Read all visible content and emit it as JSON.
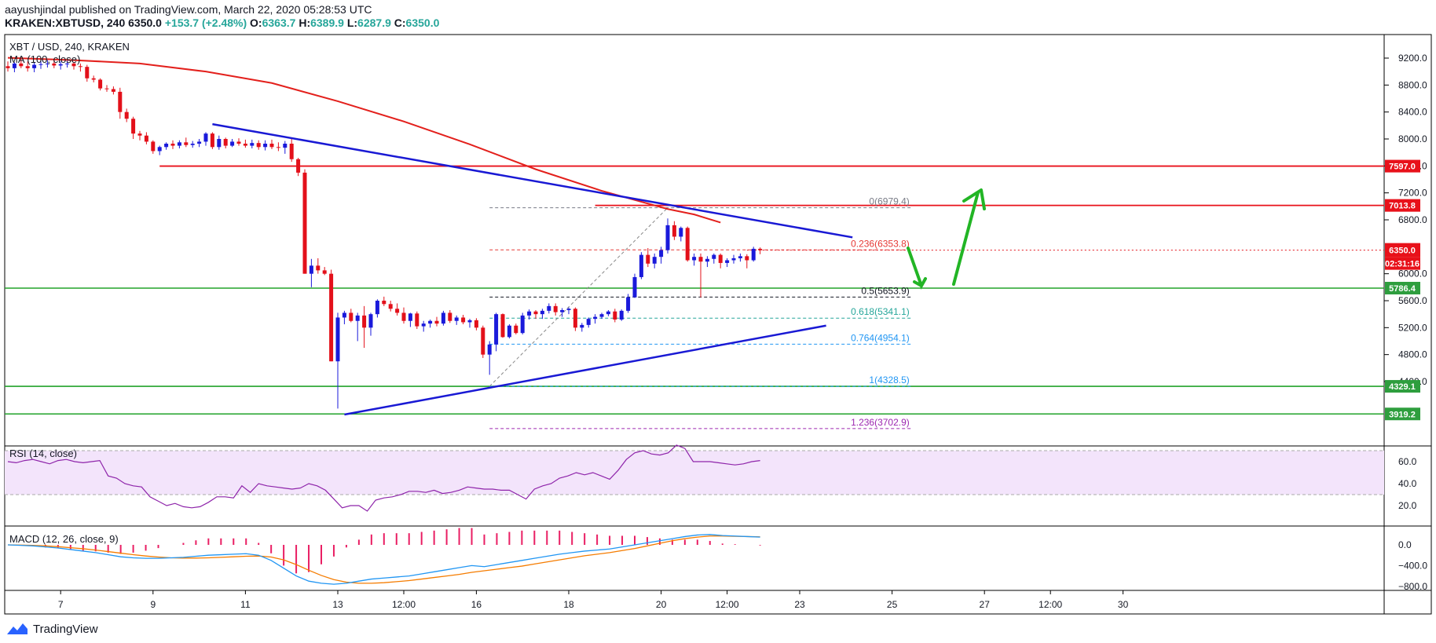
{
  "header": {
    "publisher_line": "aayushjindal published on TradingView.com, March 22, 2020 05:28:53 UTC",
    "symbol": "KRAKEN:XBTUSD, 240",
    "last": "6350.0",
    "change": "+153.7 (+2.48%)",
    "ohlc": {
      "o_label": "O:",
      "o": "6363.7",
      "h_label": "H:",
      "h": "6389.9",
      "l_label": "L:",
      "l": "6287.9",
      "c_label": "C:",
      "c": "6350.0"
    }
  },
  "footer": {
    "brand": "TradingView"
  },
  "chart_data": {
    "type": "candlestick",
    "title": "XBT / USD, 240, KRAKEN",
    "ma_label": "MA (100, close)",
    "price_ticks": [
      9200,
      8800,
      8400,
      8000,
      7600,
      7200,
      6800,
      6000,
      5600,
      5200,
      4800,
      4400
    ],
    "x_ticks": [
      {
        "label": "7",
        "i": 8
      },
      {
        "label": "9",
        "i": 22
      },
      {
        "label": "11",
        "i": 36
      },
      {
        "label": "13",
        "i": 50
      },
      {
        "label": "12:00",
        "i": 60
      },
      {
        "label": "16",
        "i": 71
      },
      {
        "label": "18",
        "i": 85
      },
      {
        "label": "20",
        "i": 99
      },
      {
        "label": "12:00",
        "i": 109
      },
      {
        "label": "23",
        "i": 120
      },
      {
        "label": "25",
        "i": 134
      },
      {
        "label": "27",
        "i": 148
      },
      {
        "label": "12:00",
        "i": 158
      },
      {
        "label": "30",
        "i": 169
      }
    ],
    "candles": [
      [
        9080,
        9150,
        9000,
        9050
      ],
      [
        9050,
        9140,
        8990,
        9120
      ],
      [
        9120,
        9200,
        9050,
        9080
      ],
      [
        9080,
        9150,
        9000,
        9050
      ],
      [
        9050,
        9130,
        8990,
        9100
      ],
      [
        9100,
        9180,
        9040,
        9110
      ],
      [
        9110,
        9170,
        9060,
        9120
      ],
      [
        9120,
        9180,
        9050,
        9090
      ],
      [
        9090,
        9150,
        9030,
        9110
      ],
      [
        9110,
        9180,
        9060,
        9120
      ],
      [
        9120,
        9140,
        9030,
        9080
      ],
      [
        9080,
        9120,
        9000,
        9070
      ],
      [
        9070,
        9100,
        8850,
        8900
      ],
      [
        8900,
        8940,
        8840,
        8880
      ],
      [
        8880,
        8900,
        8720,
        8750
      ],
      [
        8750,
        8800,
        8700,
        8740
      ],
      [
        8740,
        8780,
        8660,
        8700
      ],
      [
        8700,
        8760,
        8300,
        8400
      ],
      [
        8400,
        8450,
        8250,
        8300
      ],
      [
        8300,
        8330,
        8000,
        8080
      ],
      [
        8080,
        8120,
        7980,
        8050
      ],
      [
        8050,
        8100,
        7920,
        7960
      ],
      [
        7960,
        7980,
        7780,
        7820
      ],
      [
        7820,
        7900,
        7760,
        7880
      ],
      [
        7880,
        7950,
        7840,
        7930
      ],
      [
        7930,
        7980,
        7850,
        7900
      ],
      [
        7900,
        7980,
        7860,
        7950
      ],
      [
        7950,
        8020,
        7880,
        7910
      ],
      [
        7910,
        7970,
        7870,
        7930
      ],
      [
        7930,
        8000,
        7880,
        7960
      ],
      [
        7960,
        8100,
        7900,
        8080
      ],
      [
        8080,
        8100,
        7850,
        7880
      ],
      [
        7880,
        8050,
        7840,
        8000
      ],
      [
        8000,
        8020,
        7860,
        7900
      ],
      [
        7900,
        8000,
        7880,
        7960
      ],
      [
        7960,
        8010,
        7900,
        7930
      ],
      [
        7930,
        7990,
        7870,
        7900
      ],
      [
        7900,
        7990,
        7860,
        7940
      ],
      [
        7940,
        7980,
        7840,
        7880
      ],
      [
        7880,
        7980,
        7830,
        7930
      ],
      [
        7930,
        7990,
        7850,
        7880
      ],
      [
        7880,
        7950,
        7820,
        7870
      ],
      [
        7870,
        7970,
        7780,
        7930
      ],
      [
        7930,
        8000,
        7660,
        7700
      ],
      [
        7700,
        7720,
        7450,
        7500
      ],
      [
        7500,
        7550,
        6000,
        6000
      ],
      [
        6000,
        6220,
        5800,
        6120
      ],
      [
        6120,
        6230,
        6000,
        6050
      ],
      [
        6050,
        6100,
        5980,
        6000
      ],
      [
        6000,
        6060,
        4700,
        4700
      ],
      [
        4700,
        5420,
        4000,
        5350
      ],
      [
        5350,
        5450,
        5250,
        5420
      ],
      [
        5420,
        5480,
        5280,
        5300
      ],
      [
        5300,
        5420,
        5000,
        5380
      ],
      [
        5380,
        5520,
        4900,
        5200
      ],
      [
        5200,
        5420,
        5080,
        5400
      ],
      [
        5400,
        5620,
        5350,
        5600
      ],
      [
        5600,
        5660,
        5520,
        5550
      ],
      [
        5550,
        5600,
        5440,
        5480
      ],
      [
        5480,
        5560,
        5380,
        5420
      ],
      [
        5420,
        5500,
        5260,
        5300
      ],
      [
        5300,
        5420,
        5210,
        5410
      ],
      [
        5410,
        5440,
        5180,
        5220
      ],
      [
        5220,
        5300,
        5140,
        5260
      ],
      [
        5260,
        5320,
        5200,
        5300
      ],
      [
        5300,
        5360,
        5220,
        5260
      ],
      [
        5260,
        5450,
        5230,
        5420
      ],
      [
        5420,
        5460,
        5270,
        5300
      ],
      [
        5300,
        5380,
        5240,
        5350
      ],
      [
        5350,
        5390,
        5250,
        5280
      ],
      [
        5280,
        5330,
        5200,
        5310
      ],
      [
        5310,
        5340,
        5160,
        5200
      ],
      [
        5200,
        5230,
        4750,
        4800
      ],
      [
        4800,
        5000,
        4500,
        4950
      ],
      [
        4950,
        5420,
        4850,
        5400
      ],
      [
        5400,
        5410,
        5050,
        5060
      ],
      [
        5060,
        5250,
        5040,
        5230
      ],
      [
        5230,
        5260,
        5100,
        5120
      ],
      [
        5120,
        5420,
        5100,
        5380
      ],
      [
        5380,
        5470,
        5320,
        5440
      ],
      [
        5440,
        5460,
        5330,
        5400
      ],
      [
        5400,
        5480,
        5330,
        5450
      ],
      [
        5450,
        5560,
        5410,
        5520
      ],
      [
        5520,
        5560,
        5380,
        5430
      ],
      [
        5430,
        5490,
        5360,
        5460
      ],
      [
        5460,
        5500,
        5400,
        5480
      ],
      [
        5480,
        5500,
        5150,
        5200
      ],
      [
        5200,
        5270,
        5140,
        5240
      ],
      [
        5240,
        5350,
        5200,
        5330
      ],
      [
        5330,
        5400,
        5260,
        5360
      ],
      [
        5360,
        5420,
        5330,
        5400
      ],
      [
        5400,
        5460,
        5370,
        5440
      ],
      [
        5440,
        5480,
        5280,
        5320
      ],
      [
        5320,
        5470,
        5300,
        5450
      ],
      [
        5450,
        5700,
        5420,
        5650
      ],
      [
        5650,
        6000,
        5640,
        5950
      ],
      [
        5950,
        6320,
        5920,
        6280
      ],
      [
        6280,
        6380,
        6100,
        6150
      ],
      [
        6150,
        6300,
        6080,
        6250
      ],
      [
        6250,
        6400,
        6150,
        6350
      ],
      [
        6350,
        6820,
        6300,
        6720
      ],
      [
        6720,
        6780,
        6500,
        6550
      ],
      [
        6550,
        6700,
        6480,
        6680
      ],
      [
        6680,
        6700,
        6180,
        6200
      ],
      [
        6200,
        6300,
        6120,
        6250
      ],
      [
        6250,
        6300,
        5650,
        6180
      ],
      [
        6180,
        6260,
        6100,
        6220
      ],
      [
        6220,
        6300,
        6150,
        6280
      ],
      [
        6280,
        6300,
        6080,
        6160
      ],
      [
        6160,
        6230,
        6100,
        6200
      ],
      [
        6200,
        6280,
        6150,
        6230
      ],
      [
        6230,
        6300,
        6180,
        6260
      ],
      [
        6260,
        6290,
        6080,
        6200
      ],
      [
        6200,
        6400,
        6180,
        6370
      ],
      [
        6370,
        6390,
        6290,
        6350
      ]
    ],
    "ma100": [
      [
        0,
        9205
      ],
      [
        10,
        9170
      ],
      [
        20,
        9120
      ],
      [
        30,
        9000
      ],
      [
        40,
        8830
      ],
      [
        50,
        8560
      ],
      [
        60,
        8260
      ],
      [
        70,
        7920
      ],
      [
        80,
        7550
      ],
      [
        90,
        7230
      ],
      [
        100,
        6960
      ],
      [
        104,
        6880
      ],
      [
        108,
        6760
      ]
    ],
    "trendlines": [
      {
        "color": "#1919d4",
        "from": [
          31,
          8220
        ],
        "to": [
          128,
          6540
        ]
      },
      {
        "color": "#1919d4",
        "from": [
          51,
          3910
        ],
        "to": [
          124,
          5230
        ]
      }
    ],
    "resistance_lines": [
      {
        "price": 7597.0,
        "from": 23,
        "label": "7597.0"
      },
      {
        "price": 7013.8,
        "from": 89,
        "label": "7013.8"
      }
    ],
    "support_lines": [
      {
        "price": 5786.4,
        "label": "5786.4"
      },
      {
        "price": 4329.1,
        "label": "4329.1"
      },
      {
        "price": 3919.2,
        "label": "3919.2"
      }
    ],
    "last_price": {
      "price": 6350.0,
      "label": "6350.0",
      "countdown": "02:31:16"
    },
    "fib_levels": [
      {
        "ratio": "0",
        "price": 6979.4,
        "label": "0(6979.4)",
        "color": "#787b86"
      },
      {
        "ratio": "0.236",
        "price": 6353.8,
        "label": "0.236(6353.8)",
        "color": "#e53935"
      },
      {
        "ratio": "0.5",
        "price": 5653.9,
        "label": "0.5(5653.9)",
        "color": "#131722"
      },
      {
        "ratio": "0.618",
        "price": 5341.1,
        "label": "0.618(5341.1)",
        "color": "#26a69a"
      },
      {
        "ratio": "0.764",
        "price": 4954.1,
        "label": "0.764(4954.1)",
        "color": "#2196f3"
      },
      {
        "ratio": "1",
        "price": 4328.5,
        "label": "1(4328.5)",
        "color": "#2196f3"
      },
      {
        "ratio": "1.236",
        "price": 3702.9,
        "label": "1.236(3702.9)",
        "color": "#9c27b0"
      }
    ],
    "rsi": {
      "label": "RSI (14, close)",
      "ticks": [
        60.0,
        40.0,
        20.0
      ],
      "band": [
        30,
        70
      ],
      "values": [
        60,
        59,
        61,
        62,
        60,
        58,
        61,
        62,
        60,
        59,
        60,
        61,
        47,
        45,
        40,
        38,
        37,
        28,
        24,
        20,
        22,
        19,
        18,
        19,
        23,
        28,
        28,
        27,
        38,
        32,
        40,
        38,
        37,
        36,
        35,
        36,
        40,
        38,
        34,
        26,
        18,
        20,
        20,
        15,
        25,
        27,
        28,
        30,
        33,
        33,
        32,
        34,
        31,
        32,
        34,
        37,
        36,
        35,
        35,
        34,
        34,
        30,
        26,
        35,
        38,
        40,
        45,
        47,
        50,
        48,
        50,
        47,
        44,
        52,
        62,
        68,
        70,
        67,
        66,
        68,
        75,
        72,
        60,
        60,
        60,
        59,
        58,
        57,
        58,
        60,
        61
      ]
    },
    "macd": {
      "label": "MACD (12, 26, close, 9)",
      "ticks": [
        "0.0",
        "−400.0",
        "−800.0"
      ],
      "macd": [
        0,
        -10,
        -20,
        -40,
        -60,
        -90,
        -120,
        -150,
        -190,
        -230,
        -250,
        -260,
        -260,
        -250,
        -240,
        -220,
        -200,
        -190,
        -180,
        -170,
        -200,
        -300,
        -450,
        -600,
        -700,
        -740,
        -760,
        -740,
        -700,
        -660,
        -640,
        -620,
        -600,
        -560,
        -520,
        -480,
        -440,
        -400,
        -420,
        -380,
        -340,
        -300,
        -260,
        -220,
        -180,
        -150,
        -120,
        -100,
        -80,
        -40,
        0,
        40,
        80,
        120,
        160,
        190,
        200,
        180,
        170,
        160,
        150
      ],
      "signal": [
        0,
        -5,
        -10,
        -20,
        -35,
        -55,
        -75,
        -100,
        -130,
        -160,
        -190,
        -215,
        -235,
        -250,
        -255,
        -255,
        -250,
        -240,
        -230,
        -220,
        -215,
        -235,
        -290,
        -380,
        -490,
        -590,
        -670,
        -720,
        -740,
        -740,
        -730,
        -710,
        -690,
        -660,
        -630,
        -600,
        -570,
        -530,
        -500,
        -470,
        -440,
        -410,
        -370,
        -330,
        -290,
        -250,
        -210,
        -180,
        -150,
        -110,
        -70,
        -20,
        30,
        80,
        120,
        150,
        170,
        170,
        165,
        160,
        155
      ]
    }
  }
}
